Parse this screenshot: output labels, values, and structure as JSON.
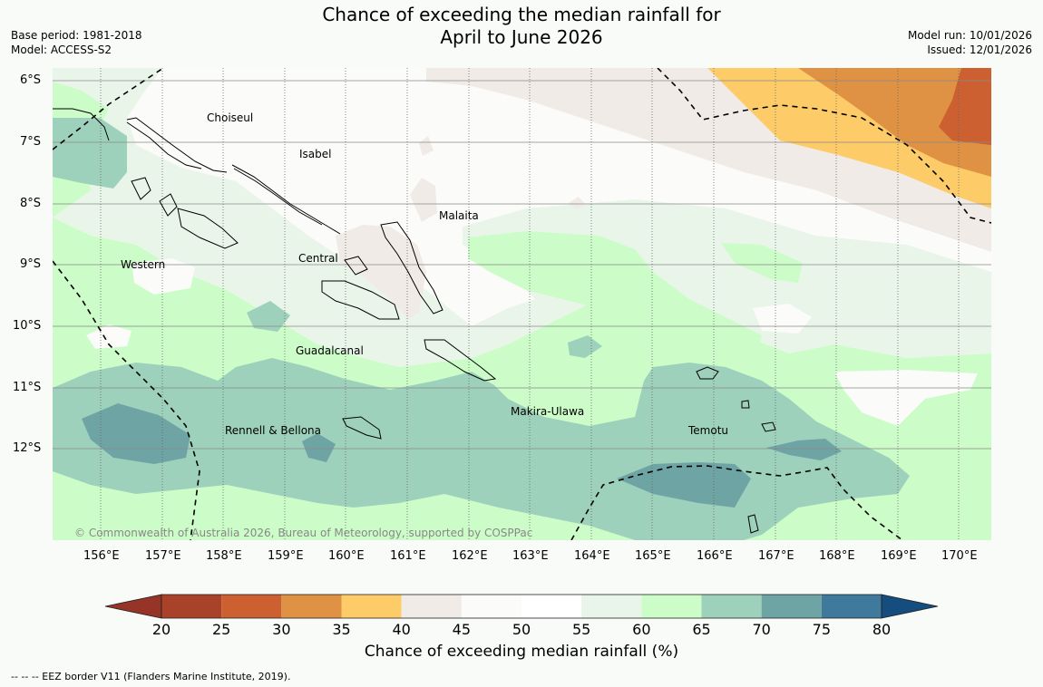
{
  "title": {
    "line1": "Chance of exceeding the median rainfall for",
    "line2": "April to June 2026"
  },
  "meta": {
    "base_period": "Base period: 1981-2018",
    "model": "Model: ACCESS-S2",
    "model_run": "Model run: 10/01/2026",
    "issued": "Issued: 12/01/2026"
  },
  "map": {
    "lat_labels": [
      "6°S",
      "7°S",
      "8°S",
      "9°S",
      "10°S",
      "11°S",
      "12°S"
    ],
    "lon_labels": [
      "156°E",
      "157°E",
      "158°E",
      "159°E",
      "160°E",
      "161°E",
      "162°E",
      "163°E",
      "164°E",
      "165°E",
      "166°E",
      "167°E",
      "168°E",
      "169°E",
      "170°E"
    ],
    "regions": {
      "choiseul": "Choiseul",
      "isabel": "Isabel",
      "malaita": "Malaita",
      "western": "Western",
      "central": "Central",
      "guadalcanal": "Guadalcanal",
      "makira": "Makira-Ulawa",
      "rennell": "Rennell & Bellona",
      "temotu": "Temotu"
    },
    "copyright": "© Commonwealth of Australia 2026, Bureau of Meteorology, supported by COSPPac"
  },
  "colorbar": {
    "ticks": [
      "20",
      "25",
      "30",
      "35",
      "40",
      "45",
      "50",
      "55",
      "60",
      "65",
      "70",
      "75",
      "80"
    ],
    "colors": [
      "#a84228",
      "#cc6030",
      "#e09244",
      "#fdcc68",
      "#f0ebe6",
      "#fbfbf9",
      "#ffffff",
      "#eaf5ea",
      "#ccfcc8",
      "#9dd1bb",
      "#6fa4a4",
      "#3f7a9c"
    ],
    "under_color": "#963427",
    "over_color": "#144d7e",
    "title": "Chance of exceeding median rainfall (%)"
  },
  "footnote": "--  --  -- EEZ border V11 (Flanders Marine Institute, 2019)."
}
